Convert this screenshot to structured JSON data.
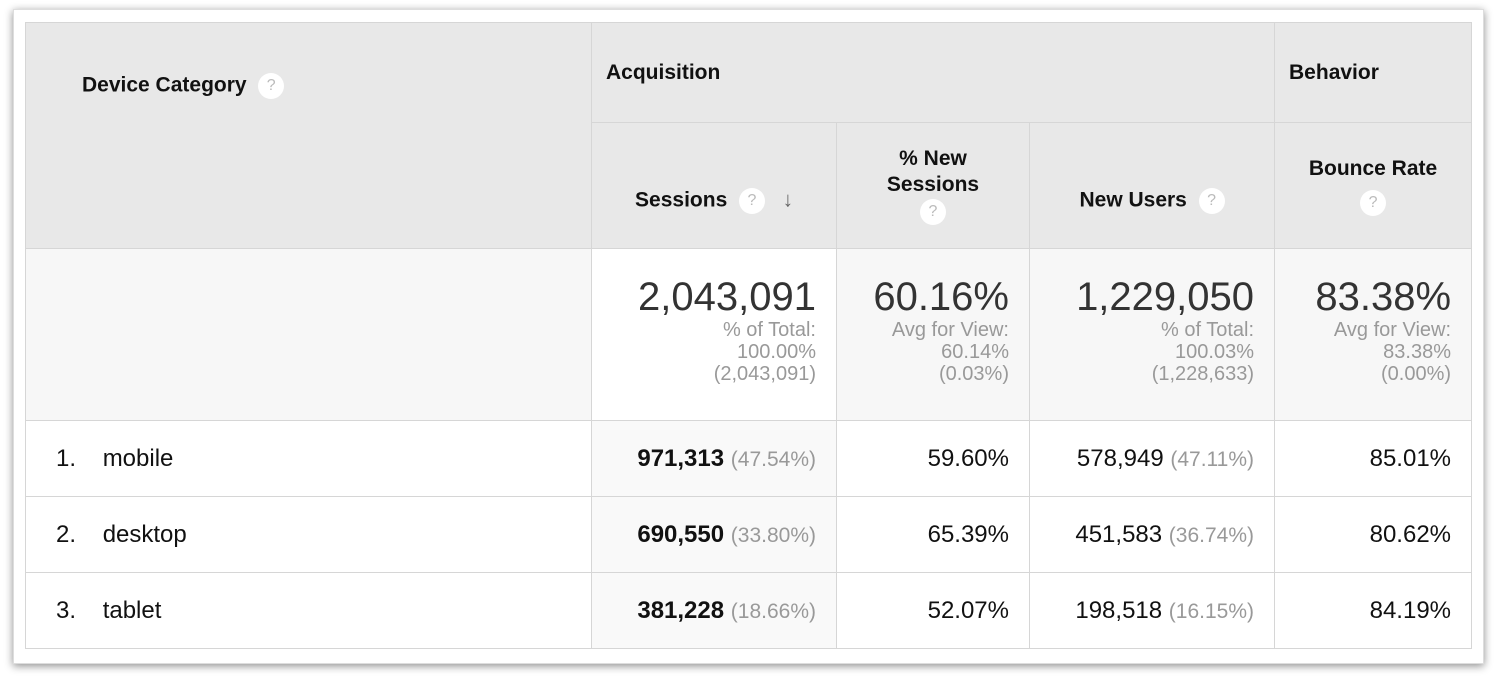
{
  "header": {
    "device_category": "Device Category",
    "acquisition": "Acquisition",
    "behavior": "Behavior",
    "sessions": "Sessions",
    "pct_new_sessions_1": "% New",
    "pct_new_sessions_2": "Sessions",
    "new_users": "New Users",
    "bounce_rate": "Bounce Rate",
    "help": "?",
    "sort_icon": "arrow-down-icon"
  },
  "summary": {
    "sessions": {
      "value": "2,043,091",
      "l1": "% of Total:",
      "l2": "100.00%",
      "l3": "(2,043,091)"
    },
    "pct_new": {
      "value": "60.16%",
      "l1": "Avg for View:",
      "l2": "60.14%",
      "l3": "(0.03%)"
    },
    "new_users": {
      "value": "1,229,050",
      "l1": "% of Total:",
      "l2": "100.03%",
      "l3": "(1,228,633)"
    },
    "bounce": {
      "value": "83.38%",
      "l1": "Avg for View:",
      "l2": "83.38%",
      "l3": "(0.00%)"
    }
  },
  "rows": [
    {
      "index": "1.",
      "device": "mobile",
      "sessions": "971,313",
      "sessions_pct": "(47.54%)",
      "pct_new": "59.60%",
      "new_users": "578,949",
      "new_users_pct": "(47.11%)",
      "bounce": "85.01%"
    },
    {
      "index": "2.",
      "device": "desktop",
      "sessions": "690,550",
      "sessions_pct": "(33.80%)",
      "pct_new": "65.39%",
      "new_users": "451,583",
      "new_users_pct": "(36.74%)",
      "bounce": "80.62%"
    },
    {
      "index": "3.",
      "device": "tablet",
      "sessions": "381,228",
      "sessions_pct": "(18.66%)",
      "pct_new": "52.07%",
      "new_users": "198,518",
      "new_users_pct": "(16.15%)",
      "bounce": "84.19%"
    }
  ]
}
